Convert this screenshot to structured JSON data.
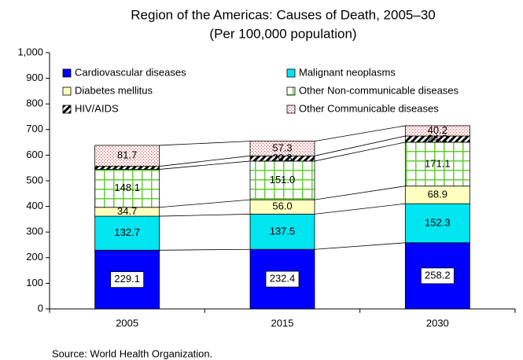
{
  "chart_data": {
    "type": "stacked_bar",
    "title": "Region of the Americas: Causes of Death, 2005–30",
    "subtitle": "(Per 100,000 population)",
    "source": "Source: World Health Organization.",
    "categories": [
      "2005",
      "2015",
      "2030"
    ],
    "ylim": [
      0,
      1000
    ],
    "yticks": [
      0,
      100,
      200,
      300,
      400,
      500,
      600,
      700,
      800,
      900,
      {
        "value": 1000,
        "label": "1,000"
      }
    ],
    "series": [
      {
        "name": "Cardiovascular diseases",
        "color": "#0000ff",
        "pattern": "solid",
        "values": [
          229.1,
          232.4,
          258.2
        ],
        "value_labels": [
          "229.1",
          "232.4",
          "258.2"
        ]
      },
      {
        "name": "Malignant neoplasms",
        "color": "#00e5f0",
        "pattern": "solid",
        "values": [
          132.7,
          137.5,
          152.3
        ],
        "value_labels": [
          "132.7",
          "137.5",
          "152.3"
        ]
      },
      {
        "name": "Diabetes mellitus",
        "color": "#ffffc0",
        "pattern": "solid",
        "values": [
          34.7,
          56.0,
          68.9
        ],
        "value_labels": [
          "34.7",
          "56.0",
          "68.9"
        ]
      },
      {
        "name": "Other Non-communicable diseases",
        "color": "#66cc33",
        "pattern": "grid",
        "values": [
          148.1,
          151.0,
          171.1
        ],
        "value_labels": [
          "148.1",
          "151.0",
          "171.1"
        ]
      },
      {
        "name": "HIV/AIDS",
        "color": "#000000",
        "pattern": "hatch",
        "values": [
          12,
          20.3,
          24.2
        ],
        "value_labels": [
          null,
          "20.3",
          "24.2"
        ]
      },
      {
        "name": "Other Communicable diseases",
        "color": "#e06060",
        "pattern": "dots",
        "values": [
          81.7,
          57.3,
          40.2
        ],
        "value_labels": [
          "81.7",
          "57.3",
          "40.2"
        ]
      }
    ]
  }
}
